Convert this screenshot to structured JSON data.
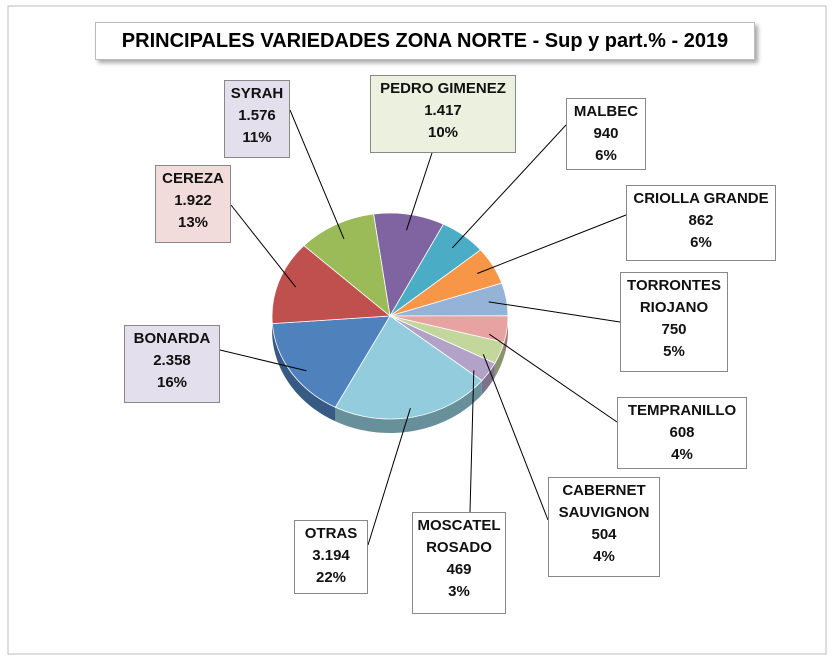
{
  "chart_data": {
    "type": "pie",
    "title": "PRINCIPALES VARIEDADES ZONA NORTE  - Sup y part.% - 2019",
    "categories": [
      "PEDRO GIMENEZ",
      "MALBEC",
      "CRIOLLA GRANDE",
      "TORRONTES RIOJANO",
      "TEMPRANILLO",
      "CABERNET SAUVIGNON",
      "MOSCATEL ROSADO",
      "OTRAS",
      "BONARDA",
      "CEREZA",
      "SYRAH"
    ],
    "values": [
      1417,
      940,
      862,
      750,
      608,
      504,
      469,
      3194,
      2358,
      1922,
      1576
    ],
    "value_labels": [
      "1.417",
      "940",
      "862",
      "750",
      "608",
      "504",
      "469",
      "3.194",
      "2.358",
      "1.922",
      "1.576"
    ],
    "percent_labels": [
      "10%",
      "6%",
      "6%",
      "5%",
      "4%",
      "4%",
      "3%",
      "22%",
      "16%",
      "13%",
      "11%"
    ],
    "colors": [
      "#8064a2",
      "#4bacc6",
      "#f79646",
      "#95b3d7",
      "#e6a3a1",
      "#c3d69b",
      "#b3a2c7",
      "#93cddd",
      "#4f81bd",
      "#c0504d",
      "#9bbb59"
    ],
    "label_fills": [
      "#ebf1de",
      "#ffffff",
      "#ffffff",
      "#ffffff",
      "#ffffff",
      "#ffffff",
      "#ffffff",
      "#ffffff",
      "#e4dfec",
      "#f2dcdb",
      "#e4dfec"
    ]
  }
}
